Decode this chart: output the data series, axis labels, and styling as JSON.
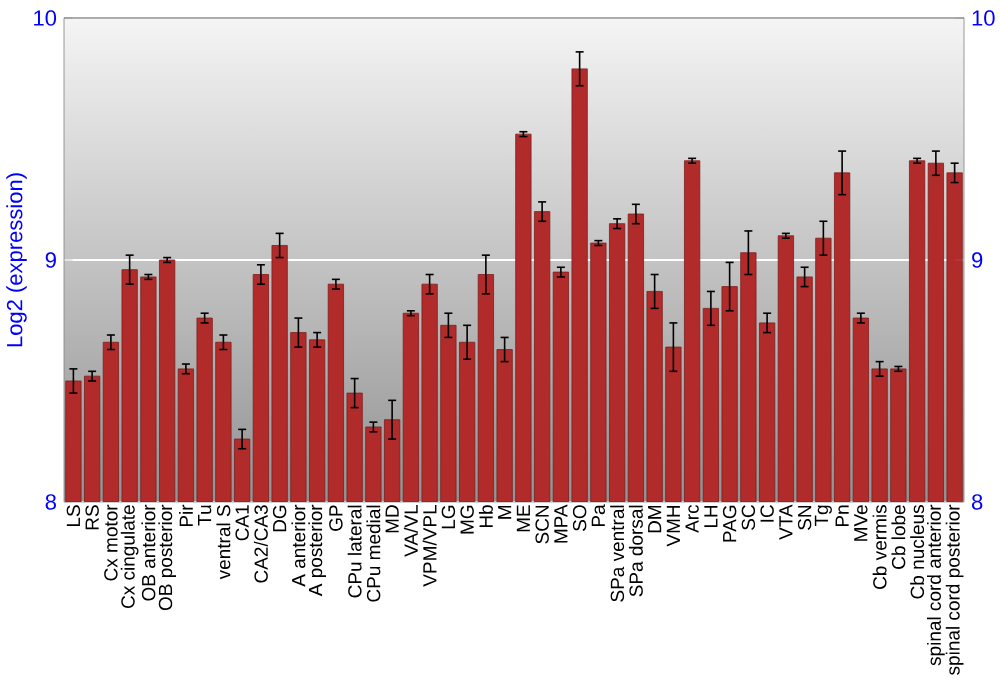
{
  "chart_data": {
    "type": "bar",
    "ylabel": "Log2 (expression)",
    "categories": [
      "LS",
      "RS",
      "Cx motor",
      "Cx cingulate",
      "OB anterior",
      "OB posterior",
      "Pir",
      "Tu",
      "ventral S",
      "CA1",
      "CA2/CA3",
      "DG",
      "A anterior",
      "A posterior",
      "GP",
      "CPu lateral",
      "CPu medial",
      "MD",
      "VA/VL",
      "VPM/VPL",
      "LG",
      "MG",
      "Hb",
      "M",
      "ME",
      "SCN",
      "MPA",
      "SO",
      "Pa",
      "SPa ventral",
      "SPa dorsal",
      "DM",
      "VMH",
      "Arc",
      "LH",
      "PAG",
      "SC",
      "IC",
      "VTA",
      "SN",
      "Tg",
      "Pn",
      "MVe",
      "Cb vermis",
      "Cb lobe",
      "Cb nucleus",
      "spinal cord anterior",
      "spinal cord posterior"
    ],
    "values": [
      8.5,
      8.52,
      8.66,
      8.96,
      8.93,
      9.0,
      8.55,
      8.76,
      8.66,
      8.26,
      8.94,
      9.06,
      8.7,
      8.67,
      8.9,
      8.45,
      8.31,
      8.34,
      8.78,
      8.9,
      8.73,
      8.66,
      8.94,
      8.63,
      9.52,
      9.2,
      8.95,
      9.79,
      9.07,
      9.15,
      9.19,
      8.87,
      8.64,
      9.41,
      8.8,
      8.89,
      9.03,
      8.74,
      9.1,
      8.93,
      9.09,
      9.36,
      8.76,
      8.55,
      8.55,
      9.41,
      9.4,
      9.36
    ],
    "errors": [
      0.05,
      0.02,
      0.03,
      0.06,
      0.01,
      0.01,
      0.02,
      0.02,
      0.03,
      0.04,
      0.04,
      0.05,
      0.06,
      0.03,
      0.02,
      0.06,
      0.02,
      0.08,
      0.01,
      0.04,
      0.05,
      0.07,
      0.08,
      0.05,
      0.01,
      0.04,
      0.02,
      0.07,
      0.01,
      0.02,
      0.04,
      0.07,
      0.1,
      0.01,
      0.07,
      0.1,
      0.09,
      0.04,
      0.01,
      0.04,
      0.07,
      0.09,
      0.02,
      0.03,
      0.01,
      0.01,
      0.05,
      0.04
    ],
    "color": "#b22b2b",
    "ylim": [
      8,
      10
    ],
    "yticks": [
      8,
      9,
      10
    ],
    "y2lim": [
      8,
      10
    ],
    "y2ticks": [
      8,
      9,
      10
    ],
    "grid": "y"
  }
}
